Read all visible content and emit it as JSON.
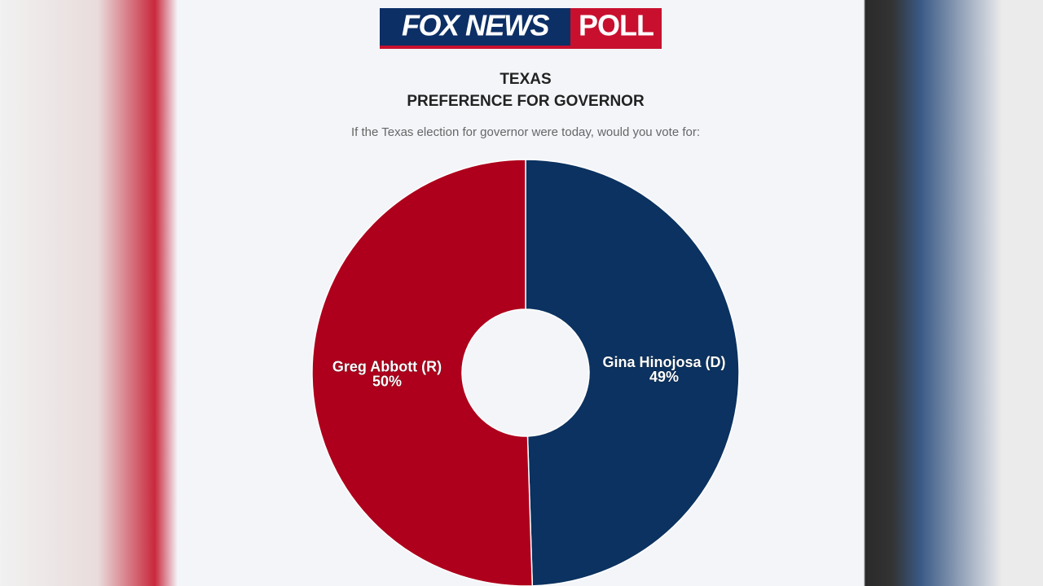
{
  "header": {
    "brand": "FOX NEWS",
    "badge": "POLL"
  },
  "chart_data": {
    "type": "donut",
    "title": "TEXAS",
    "subtitle": "PREFERENCE FOR GOVERNOR",
    "note": "If the Texas election for governor were today, would you vote for:",
    "categories": [
      "Gina Hinojosa (D)",
      "Greg Abbott (R)"
    ],
    "values": [
      49,
      50
    ],
    "value_labels": [
      "49%",
      "50%"
    ],
    "colors": [
      "#0b3260",
      "#ae001c"
    ]
  }
}
